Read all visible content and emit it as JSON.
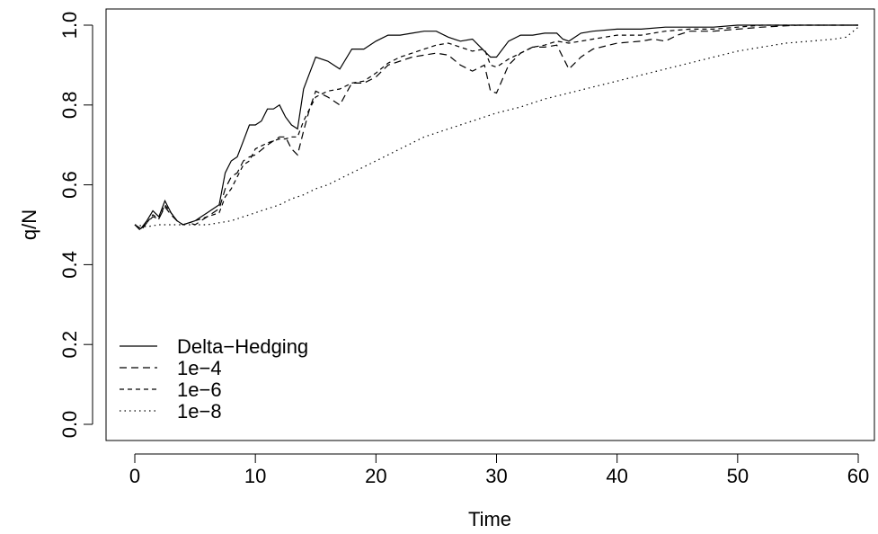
{
  "chart_data": {
    "type": "line",
    "xlabel": "Time",
    "ylabel": "q/N",
    "xlim": [
      0,
      60
    ],
    "ylim": [
      0,
      1
    ],
    "xticks": [
      0,
      10,
      20,
      30,
      40,
      50,
      60
    ],
    "yticks": [
      0.0,
      0.2,
      0.4,
      0.6,
      0.8,
      1.0
    ],
    "xtick_labels": [
      "0",
      "10",
      "20",
      "30",
      "40",
      "50",
      "60"
    ],
    "ytick_labels": [
      "0.0",
      "0.2",
      "0.4",
      "0.6",
      "0.8",
      "1.0"
    ],
    "grid": false,
    "legend_position": "bottom-left",
    "series": [
      {
        "name": "Delta−Hedging",
        "line_style": "solid",
        "x": [
          0,
          0.5,
          1,
          1.5,
          2,
          2.5,
          3,
          3.5,
          4,
          4.5,
          5,
          5.5,
          6,
          6.5,
          7,
          7.5,
          8,
          8.5,
          9,
          9.5,
          10,
          10.5,
          11,
          11.5,
          12,
          12.5,
          13,
          13.5,
          14,
          14.5,
          15,
          16,
          17,
          18,
          19,
          20,
          21,
          22,
          23,
          24,
          25,
          26,
          27,
          28,
          29,
          29.5,
          30,
          31,
          32,
          33,
          34,
          35,
          35.5,
          36,
          37,
          38,
          40,
          42,
          44,
          46,
          48,
          50,
          52,
          55,
          58,
          60
        ],
        "y": [
          0.5,
          0.49,
          0.51,
          0.535,
          0.52,
          0.56,
          0.53,
          0.51,
          0.5,
          0.505,
          0.51,
          0.52,
          0.53,
          0.54,
          0.55,
          0.63,
          0.66,
          0.67,
          0.71,
          0.75,
          0.75,
          0.76,
          0.79,
          0.79,
          0.8,
          0.77,
          0.75,
          0.74,
          0.84,
          0.88,
          0.92,
          0.91,
          0.89,
          0.94,
          0.94,
          0.96,
          0.975,
          0.975,
          0.98,
          0.985,
          0.985,
          0.97,
          0.96,
          0.965,
          0.935,
          0.92,
          0.92,
          0.96,
          0.975,
          0.975,
          0.98,
          0.98,
          0.965,
          0.96,
          0.98,
          0.985,
          0.99,
          0.99,
          0.995,
          0.995,
          0.995,
          1.0,
          1.0,
          1.0,
          1.0,
          1.0
        ]
      },
      {
        "name": "1e−4",
        "line_style": "dashed",
        "x": [
          0,
          0.5,
          1,
          1.5,
          2,
          2.5,
          3,
          3.5,
          4,
          4.5,
          5,
          6,
          7,
          7.5,
          8,
          8.5,
          9,
          9.5,
          10,
          11,
          12,
          12.5,
          13,
          13.5,
          14,
          14.5,
          15,
          16,
          17,
          18,
          19,
          20,
          21,
          22,
          23,
          24,
          25,
          26,
          27,
          28,
          29,
          29.5,
          30,
          31,
          32,
          33,
          34,
          35,
          35.5,
          36,
          37,
          38,
          40,
          42,
          43,
          44,
          45,
          46,
          48,
          50,
          52,
          55,
          58,
          60
        ],
        "y": [
          0.5,
          0.485,
          0.505,
          0.52,
          0.515,
          0.545,
          0.525,
          0.51,
          0.5,
          0.505,
          0.5,
          0.52,
          0.54,
          0.59,
          0.62,
          0.63,
          0.66,
          0.67,
          0.675,
          0.7,
          0.72,
          0.72,
          0.69,
          0.675,
          0.735,
          0.79,
          0.835,
          0.82,
          0.8,
          0.855,
          0.855,
          0.87,
          0.9,
          0.91,
          0.92,
          0.925,
          0.93,
          0.925,
          0.9,
          0.885,
          0.9,
          0.835,
          0.83,
          0.9,
          0.93,
          0.945,
          0.945,
          0.95,
          0.92,
          0.89,
          0.92,
          0.94,
          0.955,
          0.96,
          0.965,
          0.96,
          0.975,
          0.985,
          0.985,
          0.99,
          0.995,
          1.0,
          1.0,
          1.0
        ]
      },
      {
        "name": "1e−6",
        "line_style": "short-dashed",
        "x": [
          0,
          0.5,
          1,
          1.5,
          2,
          2.5,
          3,
          3.5,
          4,
          4.5,
          5,
          6,
          7,
          7.5,
          8,
          8.5,
          9,
          9.5,
          10,
          11,
          12,
          12.5,
          13,
          13.5,
          14,
          14.5,
          15,
          16,
          17,
          18,
          19,
          20,
          21,
          22,
          23,
          24,
          25,
          26,
          27,
          28,
          29,
          29.5,
          30,
          31,
          32,
          33,
          34,
          35,
          36,
          37,
          38,
          40,
          42,
          44,
          46,
          48,
          50,
          52,
          55,
          58,
          60
        ],
        "y": [
          0.5,
          0.49,
          0.505,
          0.525,
          0.515,
          0.55,
          0.53,
          0.51,
          0.5,
          0.505,
          0.51,
          0.52,
          0.53,
          0.57,
          0.59,
          0.62,
          0.65,
          0.66,
          0.69,
          0.705,
          0.715,
          0.715,
          0.72,
          0.72,
          0.76,
          0.79,
          0.82,
          0.835,
          0.84,
          0.855,
          0.86,
          0.88,
          0.905,
          0.92,
          0.93,
          0.94,
          0.95,
          0.955,
          0.945,
          0.935,
          0.94,
          0.9,
          0.895,
          0.915,
          0.93,
          0.945,
          0.95,
          0.96,
          0.955,
          0.96,
          0.965,
          0.975,
          0.975,
          0.985,
          0.99,
          0.99,
          0.995,
          1.0,
          1.0,
          1.0,
          1.0
        ]
      },
      {
        "name": "1e−8",
        "line_style": "dotted",
        "x": [
          0,
          1,
          2,
          3,
          4,
          5,
          6,
          7,
          8,
          9,
          10,
          11,
          12,
          13,
          14,
          15,
          16,
          17,
          18,
          19,
          20,
          21,
          22,
          23,
          24,
          25,
          26,
          27,
          28,
          29,
          30,
          32,
          34,
          36,
          38,
          40,
          42,
          44,
          46,
          48,
          50,
          52,
          54,
          56,
          58,
          59,
          60
        ],
        "y": [
          0.5,
          0.495,
          0.5,
          0.5,
          0.5,
          0.5,
          0.5,
          0.505,
          0.51,
          0.52,
          0.53,
          0.54,
          0.55,
          0.565,
          0.575,
          0.59,
          0.6,
          0.615,
          0.63,
          0.645,
          0.66,
          0.675,
          0.69,
          0.705,
          0.72,
          0.73,
          0.74,
          0.75,
          0.76,
          0.77,
          0.78,
          0.795,
          0.815,
          0.83,
          0.845,
          0.86,
          0.875,
          0.89,
          0.905,
          0.92,
          0.935,
          0.945,
          0.955,
          0.96,
          0.965,
          0.97,
          0.995
        ]
      }
    ]
  }
}
